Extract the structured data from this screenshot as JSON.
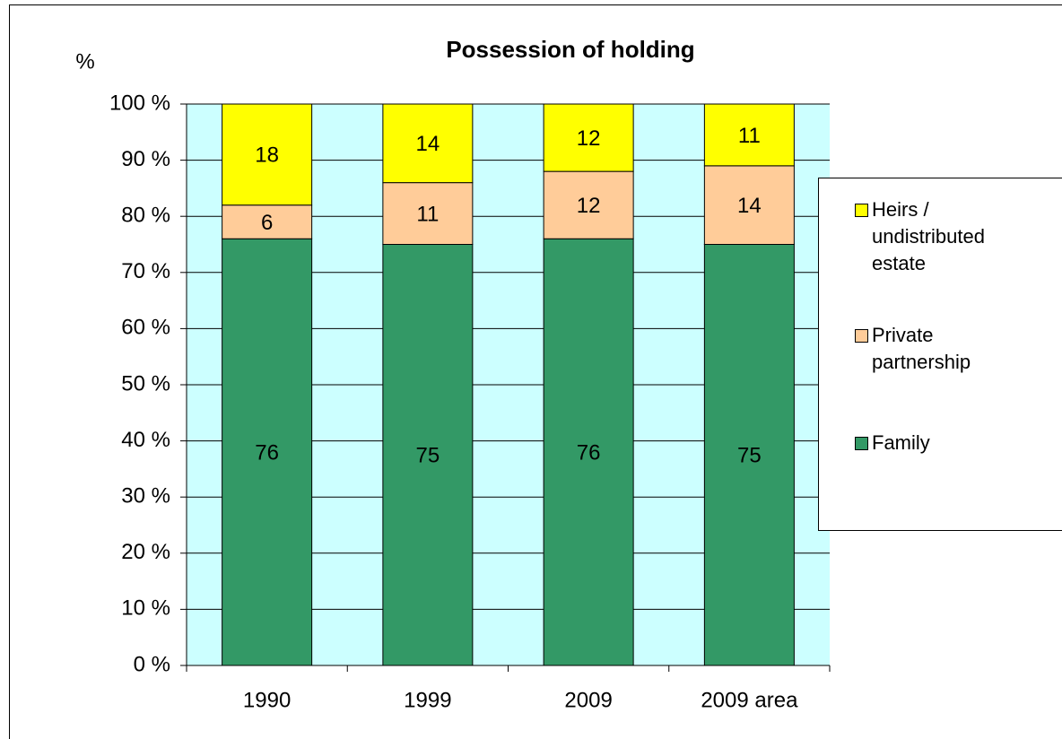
{
  "chart_data": {
    "type": "bar",
    "stacked": true,
    "title": "Possession of holding",
    "y_label": "%",
    "categories": [
      "1990",
      "1999",
      "2009",
      "2009 area"
    ],
    "series": [
      {
        "name": "Family",
        "color": "#339966",
        "values": [
          76,
          75,
          76,
          75
        ]
      },
      {
        "name": "Private partnership",
        "color": "#ffcc99",
        "values": [
          6,
          11,
          12,
          14
        ]
      },
      {
        "name": "Heirs / undistributed estate",
        "color": "#ffff00",
        "values": [
          18,
          14,
          12,
          11
        ]
      }
    ],
    "ylim": [
      0,
      100
    ],
    "yticks": [
      {
        "value": 0,
        "label": "0 %"
      },
      {
        "value": 10,
        "label": "10 %"
      },
      {
        "value": 20,
        "label": "20 %"
      },
      {
        "value": 30,
        "label": "30 %"
      },
      {
        "value": 40,
        "label": "40 %"
      },
      {
        "value": 50,
        "label": "50 %"
      },
      {
        "value": 60,
        "label": "60 %"
      },
      {
        "value": 70,
        "label": "70 %"
      },
      {
        "value": 80,
        "label": "80 %"
      },
      {
        "value": 90,
        "label": "90 %"
      },
      {
        "value": 100,
        "label": "100 %"
      }
    ],
    "grid": true,
    "plot_background": "#ccffff",
    "legend": "right"
  }
}
